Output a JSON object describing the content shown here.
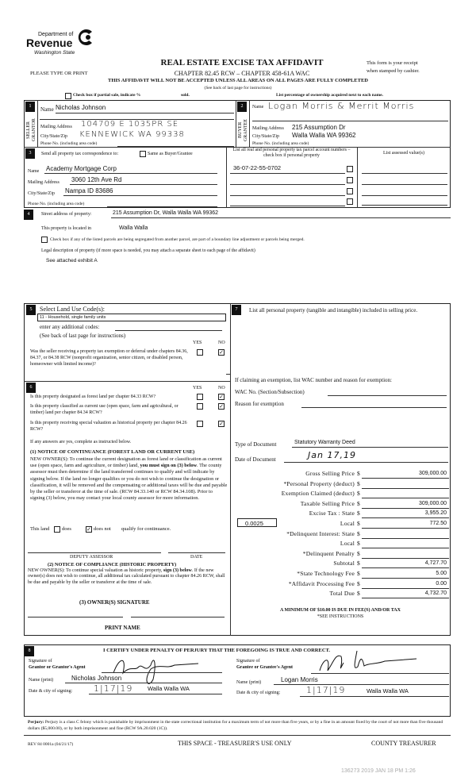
{
  "header": {
    "logo_line1": "Department of",
    "logo_line2": "Revenue",
    "logo_line3": "Washington State",
    "title": "REAL ESTATE EXCISE TAX AFFIDAVIT",
    "please": "PLEASE TYPE OR PRINT",
    "chapter": "CHAPTER 82.45 RCW – CHAPTER 458-61A WAC",
    "receipt1": "This form is your receipt",
    "receipt2": "when stamped by cashier.",
    "warning": "THIS AFFIDAVIT WILL NOT BE ACCEPTED UNLESS ALL AREAS ON ALL PAGES ARE FULLY COMPLETED",
    "see_back": "(See back of last page for instructions)",
    "partial_label": "Check box if partial sale, indicate %",
    "sold": "sold.",
    "percentage_note": "List percentage of ownership acquired next to each name.",
    "partial_checked": false
  },
  "seller": {
    "num": "1",
    "side": "SELLER GRANTOR",
    "name_label": "Name",
    "name": "Nicholas Johnson",
    "mail_label": "Mailing Address",
    "mail": "104709 E 1035PR SE",
    "city_label": "City/State/Zip",
    "city": "KENNEWICK WA 99338",
    "phone_label": "Phone No. (including area code)"
  },
  "buyer": {
    "num": "2",
    "side": "BUYER GRANTEE",
    "name_label": "Name",
    "name": "Logan Morris & Merrit Morris",
    "mail_label": "Mailing Address",
    "mail": "215 Assumption Dr",
    "city_label": "City/State/Zip",
    "city": "Walla Walla WA 99362",
    "phone_label": "Phone No. (including area code)"
  },
  "sec3": {
    "num": "3",
    "send_label": "Send all property tax correspondence to:",
    "same_label": "Same as Buyer/Grantee",
    "same_checked": false,
    "name_label": "Name",
    "name": "Academy Mortgage Corp",
    "mail_label": "Mailing Address",
    "mail": "3060 12th Ave Rd",
    "city_label": "City/State/Zip",
    "city": "Nampa ID 83686",
    "phone_label": "Phone No. (including area code)",
    "parcel_header": "List all real and personal property tax parcel account numbers – check box if personal property",
    "assessed_header": "List assessed value(s)",
    "parcels": [
      {
        "number": "36-07-22-55-0702",
        "personal": false
      },
      {
        "number": "",
        "personal": false
      },
      {
        "number": "",
        "personal": false
      },
      {
        "number": "",
        "personal": false
      }
    ]
  },
  "sec4": {
    "num": "4",
    "street_label": "Street address of property:",
    "street": "215 Assumption Dr, Walla Walla WA 99362",
    "located_label": "This property is located in",
    "located": "Walla Walla",
    "segregated_label": "Check box if any of the listed parcels are being segregated from another parcel, are part of a boundary line adjustment or parcels being merged.",
    "segregated_checked": false,
    "legal_label": "Legal description of property (if more space is needed, you may attach a separate sheet to each page of the affidavit)",
    "legal": "See attached exhibit A"
  },
  "sec5": {
    "num": "5",
    "title": "Select Land Use Code(s):",
    "code": "11 - Household, single family units",
    "additional": "enter any additional codes:",
    "see_back": "(See back of last page for instructions)",
    "yes": "YES",
    "no": "NO",
    "question": "Was the seller receiving a property tax exemption or deferral under chapters 84.36, 84.37, or 84.38 RCW (nonprofit organization, senior citizen, or disabled person, homeowner with limited income)?",
    "answer": "NO"
  },
  "sec6": {
    "num": "6",
    "yes": "YES",
    "no": "NO",
    "questions": [
      {
        "text": "Is this property designated as forest land per chapter 84.33 RCW?",
        "answer": "NO"
      },
      {
        "text": "Is this property classified as current use (open space, farm and agricultural, or timber) land per chapter 84.34 RCW?",
        "answer": "NO"
      },
      {
        "text": "Is this property receiving special valuation as historical property per chapter 84.26 RCW?",
        "answer": "NO"
      }
    ],
    "if_yes": "If any answers are yes, complete as instructed below.",
    "notice1_title": "(1) NOTICE OF CONTINUANCE (FOREST LAND OR CURRENT USE)",
    "notice1_a": "NEW OWNER(S): To continue the current designation as forest land or classification as current use (open space, farm and agriculture, or timber) land,",
    "notice1_bold": "you must sign on (3) below",
    "notice1_b": ". The county assessor must then determine if the land transferred continues to qualify and will indicate by signing below. If the land no longer qualifies or you do not wish to continue the designation or classification, it will be removed and the compensating or additional taxes will be due and payable by the seller or transferor at the time of sale. (RCW 84.33.140 or RCW 84.34.108). Prior to signing (3) below, you may contact your local county assessor for more information.",
    "this_land": "This land",
    "does": "does",
    "does_not": "does not",
    "qualify": "qualify for continuance.",
    "continuance": "does not",
    "deputy": "DEPUTY ASSESSOR",
    "date": "DATE",
    "notice2_title": "(2) NOTICE OF COMPLIANCE (HISTORIC PROPERTY)",
    "notice2_a": "NEW OWNER(S): To continue special valuation as historic property,",
    "notice2_bold": "sign (3) below",
    "notice2_b": ". If the new owner(s) does not wish to continue, all additional tax calculated pursuant to chapter 84.26 RCW, shall be due and payable by the seller or transferor at the time of sale.",
    "owner_sig": "(3) OWNER(S) SIGNATURE",
    "print_name": "PRINT NAME"
  },
  "sec7": {
    "num": "7",
    "title": "List all  personal property (tangible and intangible) included in selling price.",
    "exemption_intro": "If claiming an exemption, list WAC number and reason for exemption:",
    "wac_label": "WAC No. (Section/Subsection)",
    "reason_label": "Reason for exemption",
    "doc_type_label": "Type of Document",
    "doc_type": "Statutory Warranty Deed",
    "doc_date_label": "Date of Document",
    "doc_date": "Jan 17,19",
    "local_rate": "0.0025",
    "rows": [
      {
        "label": "Gross Selling Price",
        "value": "309,000.00"
      },
      {
        "label": "*Personal Property (deduct)",
        "value": ""
      },
      {
        "label": "Exemption Claimed (deduct)",
        "value": ""
      },
      {
        "label": "Taxable Selling Price",
        "value": "309,000.00"
      },
      {
        "label": "Excise Tax : State",
        "value": "3,955.20"
      },
      {
        "label": "Local",
        "value": "772.50"
      },
      {
        "label": "*Delinquent Interest: State",
        "value": ""
      },
      {
        "label": "Local",
        "value": ""
      },
      {
        "label": "*Delinquent Penalty",
        "value": ""
      },
      {
        "label": "Subtotal",
        "value": "4,727.70"
      },
      {
        "label": "*State Technology Fee",
        "value": "5.00"
      },
      {
        "label": "*Affidavit Processing Fee",
        "value": "0.00"
      },
      {
        "label": "Total Due",
        "value": "4,732.70"
      }
    ],
    "currency": "$",
    "minimum": "A MINIMUM OF $10.00 IS DUE IN FEE(S) AND/OR TAX",
    "see_instr": "*SEE INSTRUCTIONS"
  },
  "sec8": {
    "num": "8",
    "certify": "I CERTIFY UNDER PENALTY OF PERJURY THAT THE FOREGOING IS TRUE AND CORRECT.",
    "sig_of": "Signature of",
    "grantor_agent": "Grantor or Grantor's Agent",
    "grantee_agent": "Grantee or Grantee's Agent",
    "name_print": "Name (print)",
    "grantor_name": "Nicholas Johnson",
    "grantee_name": "Logan Morris",
    "date_city": "Date & city of signing:",
    "grantor_date": "1|17|19",
    "grantor_city": "Walla Walla WA",
    "grantee_date": "1|17|19",
    "grantee_city": "Walla Walla WA"
  },
  "perjury": {
    "label": "Perjury:",
    "text": "Perjury is a class C felony which is punishable by imprisonment in the state correctional institution for a maximum term of not more than five years, or by a fine in an amount fixed by the court of not more than five thousand dollars ($5,000.00), or by both imprisonment and fine (RCW 9A.20.020 (1C))."
  },
  "footer": {
    "rev": "REV 84 0001a (04/21/17)",
    "treasurer_space": "THIS SPACE - TREASURER'S USE ONLY",
    "county": "COUNTY TREASURER",
    "stamp": "136273 2019 JAN 18 PM 1:26"
  }
}
